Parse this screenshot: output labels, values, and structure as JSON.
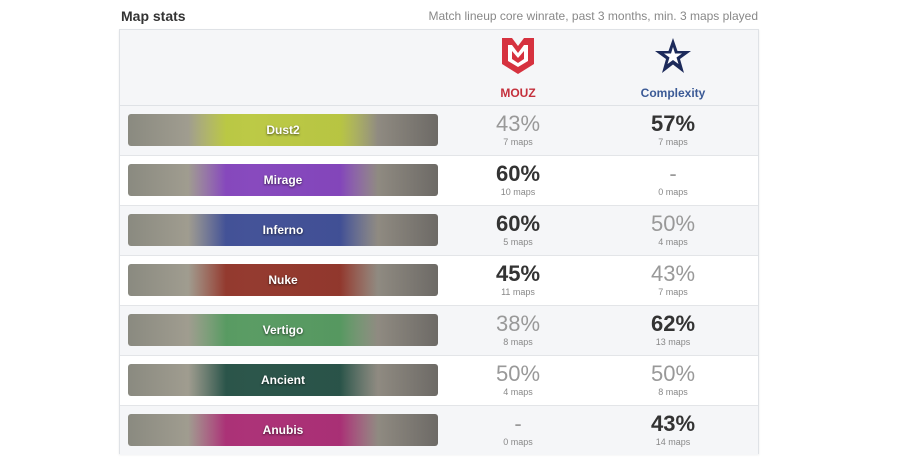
{
  "header": {
    "title": "Map stats",
    "subtitle": "Match lineup core winrate, past 3 months, min. 3 maps played"
  },
  "teams": [
    "MOUZ",
    "Complexity"
  ],
  "rows": [
    {
      "map": "Dust2",
      "team1": {
        "winrate": "43%",
        "maps": "7 maps"
      },
      "team2": {
        "winrate": "57%",
        "maps": "7 maps"
      }
    },
    {
      "map": "Mirage",
      "team1": {
        "winrate": "60%",
        "maps": "10 maps"
      },
      "team2": {
        "winrate": "-",
        "maps": "0 maps"
      }
    },
    {
      "map": "Inferno",
      "team1": {
        "winrate": "60%",
        "maps": "5 maps"
      },
      "team2": {
        "winrate": "50%",
        "maps": "4 maps"
      }
    },
    {
      "map": "Nuke",
      "team1": {
        "winrate": "45%",
        "maps": "11 maps"
      },
      "team2": {
        "winrate": "43%",
        "maps": "7 maps"
      }
    },
    {
      "map": "Vertigo",
      "team1": {
        "winrate": "38%",
        "maps": "8 maps"
      },
      "team2": {
        "winrate": "62%",
        "maps": "13 maps"
      }
    },
    {
      "map": "Ancient",
      "team1": {
        "winrate": "50%",
        "maps": "4 maps"
      },
      "team2": {
        "winrate": "50%",
        "maps": "8 maps"
      }
    },
    {
      "map": "Anubis",
      "team1": {
        "winrate": "-",
        "maps": "0 maps"
      },
      "team2": {
        "winrate": "43%",
        "maps": "14 maps"
      }
    }
  ]
}
